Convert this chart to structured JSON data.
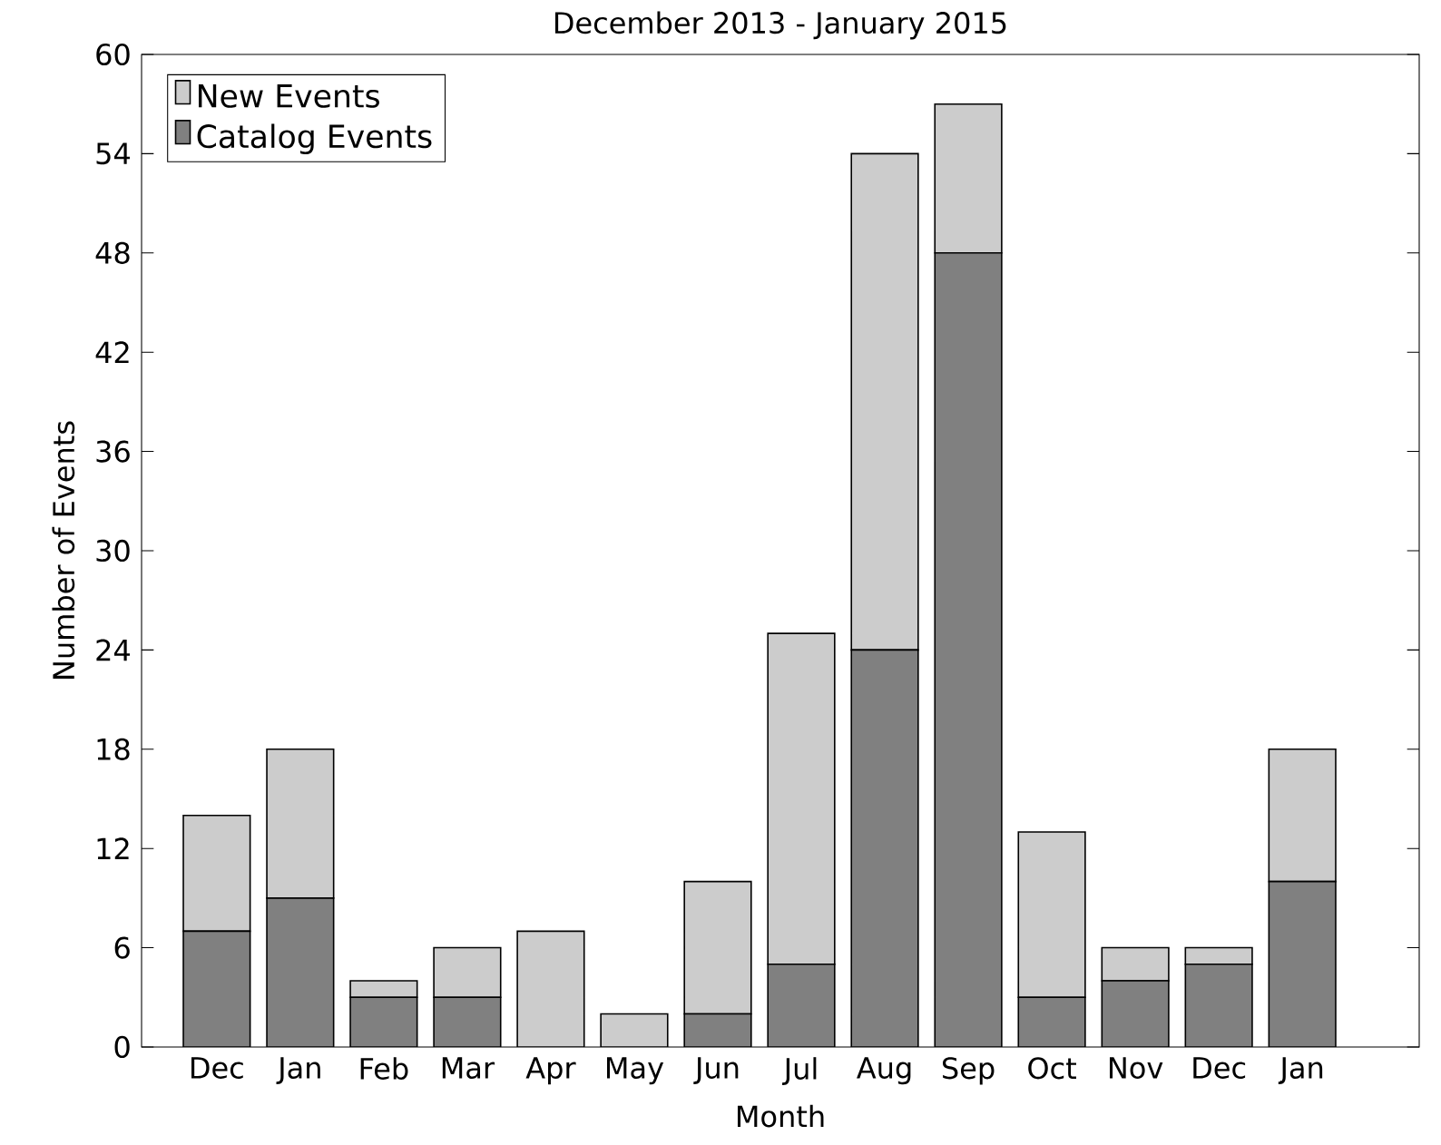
{
  "chart_data": {
    "type": "bar",
    "title": "December 2013 - January 2015",
    "xlabel": "Month",
    "ylabel": "Number of Events",
    "categories": [
      "Dec",
      "Jan",
      "Feb",
      "Mar",
      "Apr",
      "May",
      "Jun",
      "Jul",
      "Aug",
      "Sep",
      "Oct",
      "Nov",
      "Dec",
      "Jan"
    ],
    "stacked": true,
    "series": [
      {
        "name": "Catalog Events",
        "color": "#808080",
        "values": [
          7,
          9,
          3,
          3,
          0,
          0,
          2,
          5,
          24,
          48,
          3,
          4,
          5,
          10
        ]
      },
      {
        "name": "New Events",
        "color": "#cccccc",
        "values": [
          7,
          9,
          1,
          3,
          7,
          2,
          8,
          20,
          30,
          9,
          10,
          2,
          1,
          8
        ]
      }
    ],
    "ylim": [
      0,
      60
    ],
    "yticks": [
      0,
      6,
      12,
      18,
      24,
      30,
      36,
      42,
      48,
      54,
      60
    ],
    "grid": false,
    "legend": "top left"
  }
}
